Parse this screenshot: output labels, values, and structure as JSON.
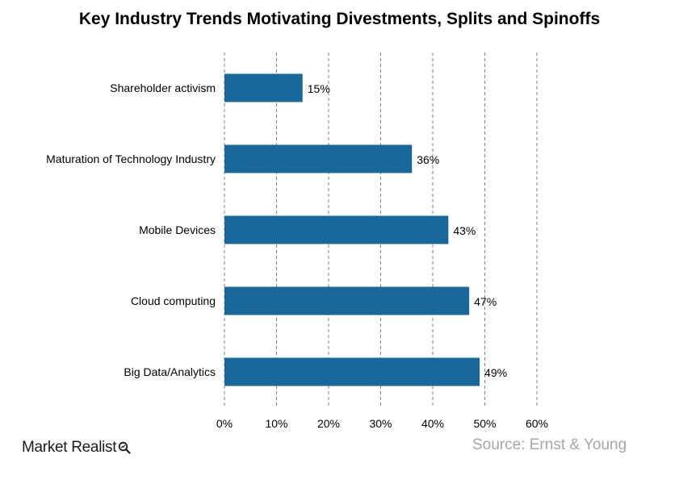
{
  "chart_data": {
    "type": "bar",
    "orientation": "horizontal",
    "title": "Key Industry Trends Motivating Divestments, Splits and Spinoffs",
    "categories": [
      "Shareholder activism",
      "Maturation of Technology Industry",
      "Mobile Devices",
      "Cloud computing",
      "Big Data/Analytics"
    ],
    "values": [
      15,
      36,
      43,
      47,
      49
    ],
    "data_labels": [
      "15%",
      "36%",
      "43%",
      "47%",
      "49%"
    ],
    "xlim": [
      0,
      60
    ],
    "xticks": [
      0,
      10,
      20,
      30,
      40,
      50,
      60
    ],
    "xtick_labels": [
      "0%",
      "10%",
      "20%",
      "30%",
      "40%",
      "50%",
      "60%"
    ],
    "grid": "vertical-dashed",
    "bar_color": "#18689b",
    "grid_color": "#808080"
  },
  "branding": {
    "logo_text": "Market Realist",
    "logo_icon": "magnifier-icon"
  },
  "source": "Source:  Ernst & Young"
}
